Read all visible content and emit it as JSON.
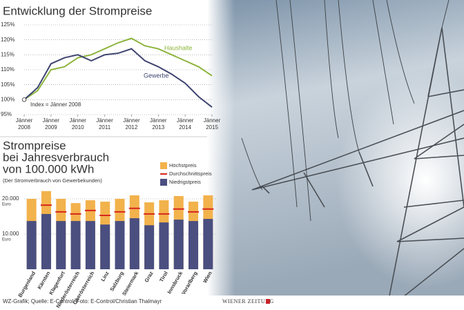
{
  "charts": [
    {
      "type": "line",
      "title": "Entwicklung der Strompreise",
      "annotation": "Index = Jänner 2008",
      "x": [
        2008,
        2008.5,
        2009,
        2009.5,
        2010,
        2010.5,
        2011,
        2011.5,
        2012,
        2012.5,
        2013,
        2013.5,
        2014,
        2014.5,
        2015
      ],
      "series": [
        {
          "name": "Haushalte",
          "color": "#8db43c",
          "values": [
            100,
            103,
            110,
            111,
            114,
            115,
            117,
            119,
            120.5,
            118,
            117,
            115,
            113,
            111,
            108
          ]
        },
        {
          "name": "Gewerbe",
          "color": "#3f4470",
          "values": [
            100,
            104,
            112,
            114,
            115,
            113,
            115,
            115.5,
            117,
            113,
            111,
            108.5,
            105.5,
            101,
            97.5
          ]
        }
      ],
      "xlim": [
        2008,
        2015
      ],
      "xticks": [
        {
          "value": 2008,
          "label": "Jänner 2008"
        },
        {
          "value": 2009,
          "label": "Jänner 2009"
        },
        {
          "value": 2010,
          "label": "Jänner 2010"
        },
        {
          "value": 2011,
          "label": "Jänner 2011"
        },
        {
          "value": 2012,
          "label": "Jänner 2012"
        },
        {
          "value": 2013,
          "label": "Jänner 2013"
        },
        {
          "value": 2014,
          "label": "Jänner 2014"
        },
        {
          "value": 2015,
          "label": "Jänner 2015"
        }
      ],
      "ylim": [
        95,
        125
      ],
      "yticks": [
        {
          "value": 95,
          "label": "95%"
        },
        {
          "value": 100,
          "label": "100%"
        },
        {
          "value": 105,
          "label": "105%"
        },
        {
          "value": 110,
          "label": "110%"
        },
        {
          "value": 115,
          "label": "115%"
        },
        {
          "value": 120,
          "label": "120%"
        },
        {
          "value": 125,
          "label": "125%"
        }
      ],
      "grid": true
    },
    {
      "type": "bar",
      "title": [
        "Strompreise",
        "bei Jahresverbrauch",
        "von 100.000 kWh"
      ],
      "subtitle": "(Der Stromverbrauch von Gewerbekunden)",
      "y_unit": "Euro",
      "categories": [
        "Burgenland",
        "Kärnten",
        "Klagenfurt",
        "Niederösterreich",
        "Oberösterreich",
        "Linz",
        "Salzburg",
        "Steiermark",
        "Graz",
        "Tirol",
        "Innsbruck",
        "Vorarlberg",
        "Wien"
      ],
      "series": [
        {
          "name": "Höchstpreis",
          "color": "#f2b24c",
          "values": [
            20000,
            22200,
            20000,
            18800,
            19600,
            19200,
            20000,
            21000,
            19000,
            19600,
            20800,
            19200,
            21000
          ]
        },
        {
          "name": "Durchschnittspreis",
          "color": "#d7261e",
          "values": [
            null,
            18200,
            16300,
            15700,
            16700,
            15300,
            16300,
            17300,
            15700,
            15700,
            17100,
            16300,
            17100
          ]
        },
        {
          "name": "Niedrigstpreis",
          "color": "#4a4f80",
          "values": [
            13700,
            15700,
            13700,
            13700,
            13700,
            12700,
            13700,
            14500,
            12500,
            13300,
            14100,
            13700,
            14300
          ]
        }
      ],
      "ylim": [
        0,
        23000
      ],
      "yticks": [
        {
          "value": 10000,
          "label": "10.000"
        },
        {
          "value": 20000,
          "label": "20.000"
        }
      ],
      "grid": true
    }
  ],
  "footer": {
    "credit": "WZ-Grafik; Quelle: E-Control; Foto: E-Control/Christian Thalmayr",
    "logo": "Wiener Zeitung"
  }
}
